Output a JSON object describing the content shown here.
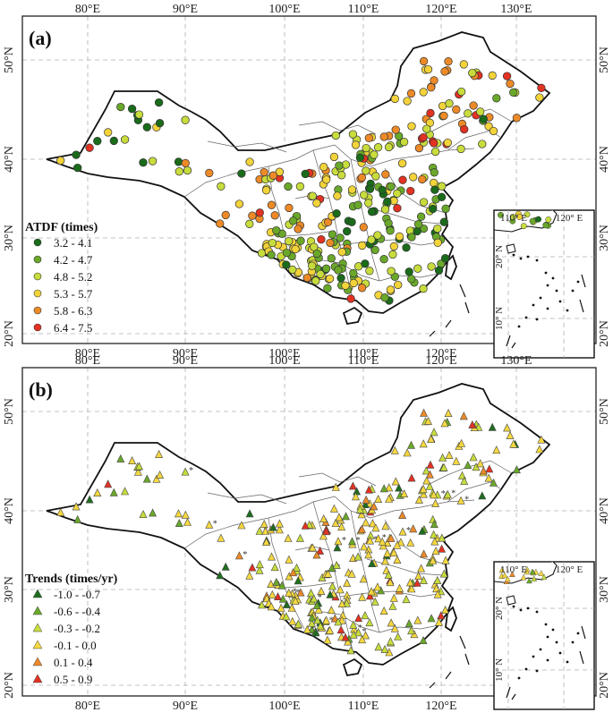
{
  "panels": [
    {
      "label": "(a)",
      "legend_title": "ATDF (times)",
      "marker": "circle",
      "classes": [
        {
          "range": "3.2 - 4.1",
          "color": "#1a6b1a"
        },
        {
          "range": "4.2 - 4.7",
          "color": "#6aa82a"
        },
        {
          "range": "4.8 - 5.2",
          "color": "#c8dc3c"
        },
        {
          "range": "5.3 - 5.7",
          "color": "#f2d33a"
        },
        {
          "range": "5.8 - 6.3",
          "color": "#ec8a28"
        },
        {
          "range": "6.4 - 7.5",
          "color": "#e23222"
        }
      ]
    },
    {
      "label": "(b)",
      "legend_title": "Trends (times/yr)",
      "marker": "triangle",
      "classes": [
        {
          "range": "-1.0 - -0.7",
          "color": "#1f6d1f"
        },
        {
          "range": "-0.6 - -0.4",
          "color": "#6aa82a"
        },
        {
          "range": "-0.3 - -0.2",
          "color": "#c8dc3c"
        },
        {
          "range": "-0.1 - 0.0",
          "color": "#f5d840"
        },
        {
          "range": "0.1 - 0.4",
          "color": "#ec8a28"
        },
        {
          "range": "0.5 - 0.9",
          "color": "#e23222"
        }
      ]
    }
  ],
  "axes": {
    "lon_ticks": [
      "80°E",
      "90°E",
      "100°E",
      "110°E",
      "120°E",
      "130°E"
    ],
    "lat_ticks": [
      "50°N",
      "40°N",
      "30°N",
      "20°N"
    ],
    "inset_lon_ticks": [
      "110° E",
      "120° E"
    ],
    "inset_lat_ticks": [
      "20° N",
      "10° N"
    ]
  },
  "colors": {
    "frame": "#222222",
    "gridline": "#b0b0b0",
    "significance_mark": "#333333"
  }
}
